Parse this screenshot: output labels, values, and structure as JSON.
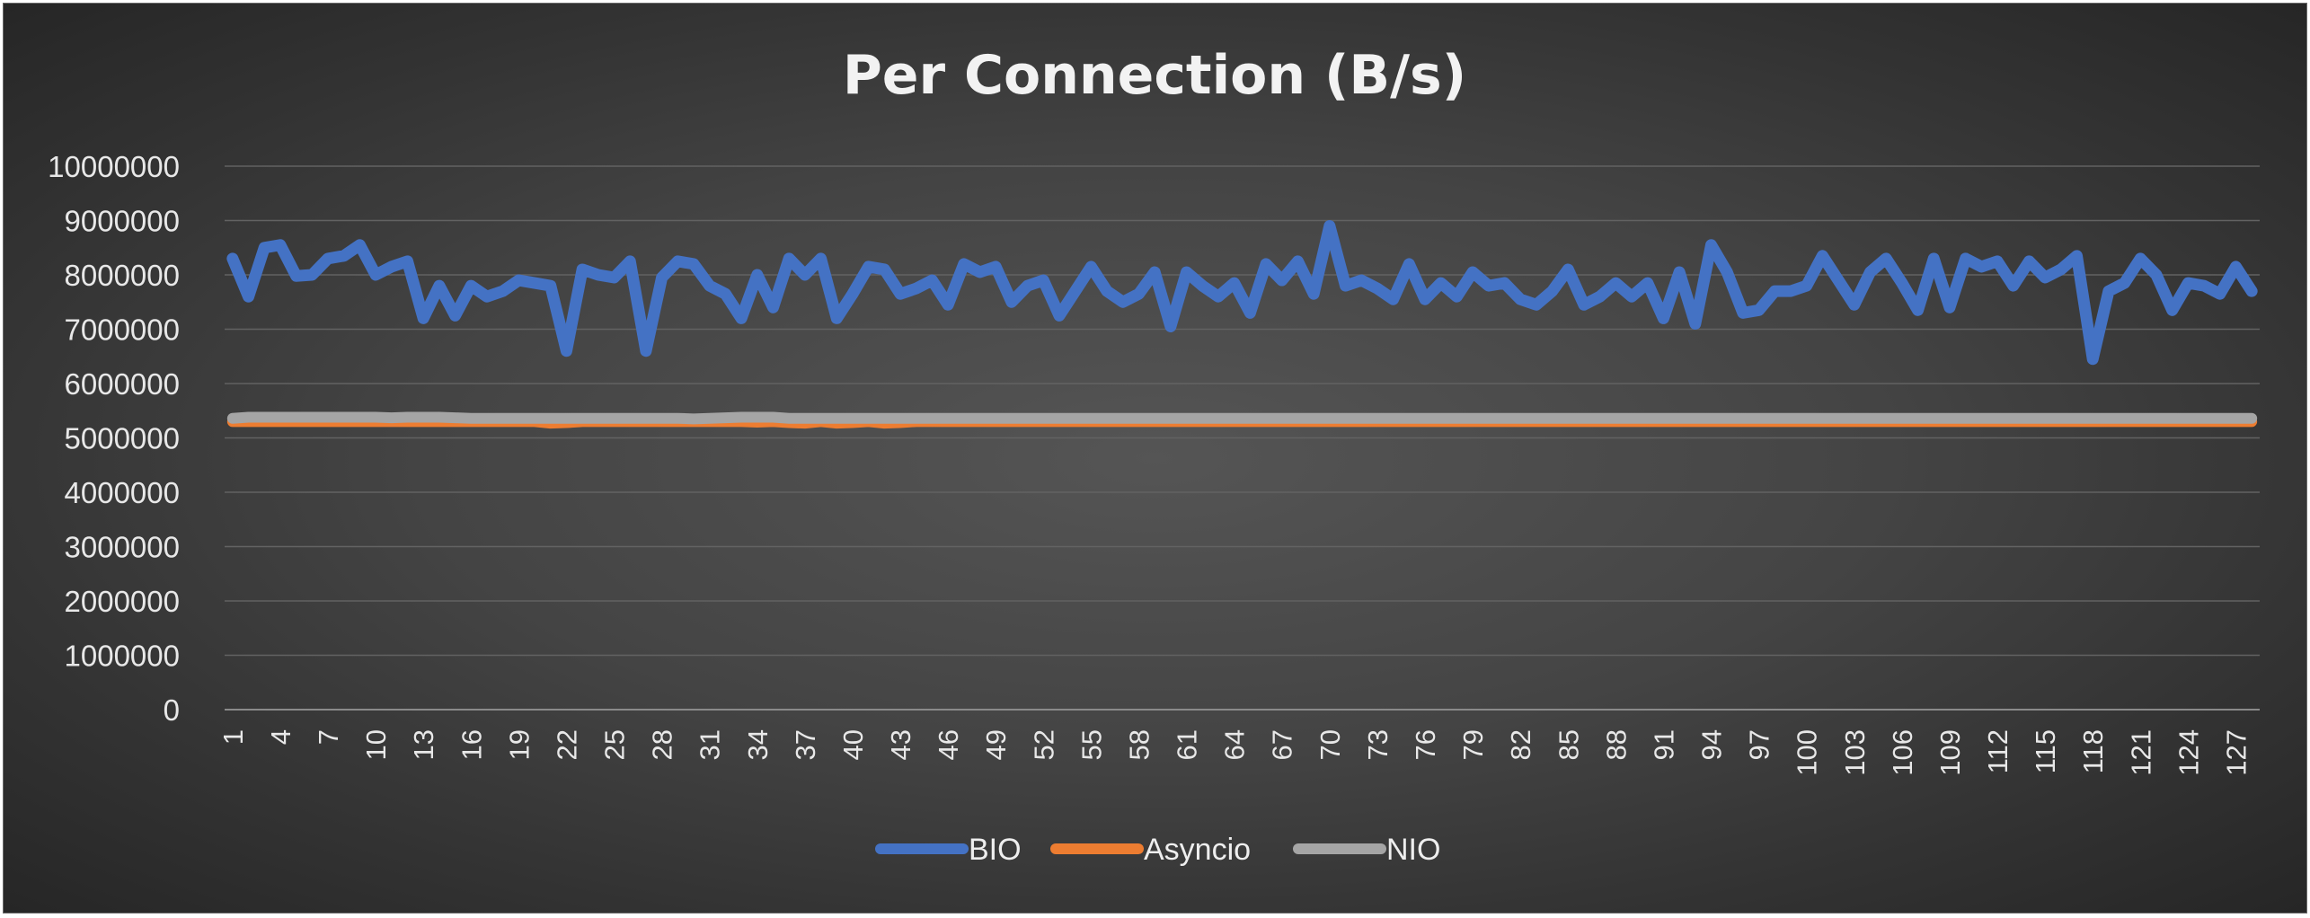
{
  "chart_data": {
    "type": "line",
    "title": "Per Connection (B/s)",
    "xlabel": "",
    "ylabel": "",
    "ylim": [
      0,
      10000000
    ],
    "yticks": [
      0,
      1000000,
      2000000,
      3000000,
      4000000,
      5000000,
      6000000,
      7000000,
      8000000,
      9000000,
      10000000
    ],
    "x": [
      1,
      2,
      3,
      4,
      5,
      6,
      7,
      8,
      9,
      10,
      11,
      12,
      13,
      14,
      15,
      16,
      17,
      18,
      19,
      20,
      21,
      22,
      23,
      24,
      25,
      26,
      27,
      28,
      29,
      30,
      31,
      32,
      33,
      34,
      35,
      36,
      37,
      38,
      39,
      40,
      41,
      42,
      43,
      44,
      45,
      46,
      47,
      48,
      49,
      50,
      51,
      52,
      53,
      54,
      55,
      56,
      57,
      58,
      59,
      60,
      61,
      62,
      63,
      64,
      65,
      66,
      67,
      68,
      69,
      70,
      71,
      72,
      73,
      74,
      75,
      76,
      77,
      78,
      79,
      80,
      81,
      82,
      83,
      84,
      85,
      86,
      87,
      88,
      89,
      90,
      91,
      92,
      93,
      94,
      95,
      96,
      97,
      98,
      99,
      100,
      101,
      102,
      103,
      104,
      105,
      106,
      107,
      108,
      109,
      110,
      111,
      112,
      113,
      114,
      115,
      116,
      117,
      118,
      119,
      120,
      121,
      122,
      123,
      124,
      125,
      126,
      127,
      128
    ],
    "xticks_shown": [
      1,
      4,
      7,
      10,
      13,
      16,
      19,
      22,
      25,
      28,
      31,
      34,
      37,
      40,
      43,
      46,
      49,
      52,
      55,
      58,
      61,
      64,
      67,
      70,
      73,
      76,
      79,
      82,
      85,
      88,
      91,
      94,
      97,
      100,
      103,
      106,
      109,
      112,
      115,
      118,
      121,
      124,
      127
    ],
    "grid": true,
    "legend_position": "bottom",
    "series": [
      {
        "name": "BIO",
        "color": "#4472C4",
        "values": [
          8300000,
          7600000,
          8500000,
          8550000,
          7980000,
          8000000,
          8300000,
          8350000,
          8550000,
          8000000,
          8150000,
          8250000,
          7200000,
          7800000,
          7250000,
          7800000,
          7600000,
          7700000,
          7900000,
          7850000,
          7800000,
          6600000,
          8100000,
          8000000,
          7950000,
          8250000,
          6600000,
          7950000,
          8250000,
          8200000,
          7800000,
          7650000,
          7200000,
          8000000,
          7400000,
          8300000,
          8000000,
          8300000,
          7200000,
          7650000,
          8150000,
          8100000,
          7650000,
          7750000,
          7900000,
          7450000,
          8200000,
          8050000,
          8150000,
          7500000,
          7800000,
          7900000,
          7250000,
          7700000,
          8150000,
          7700000,
          7500000,
          7650000,
          8050000,
          7050000,
          8050000,
          7800000,
          7600000,
          7850000,
          7300000,
          8200000,
          7900000,
          8250000,
          7650000,
          8900000,
          7800000,
          7900000,
          7750000,
          7550000,
          8200000,
          7550000,
          7850000,
          7600000,
          8050000,
          7800000,
          7850000,
          7550000,
          7450000,
          7700000,
          8100000,
          7450000,
          7600000,
          7850000,
          7600000,
          7850000,
          7200000,
          8050000,
          7100000,
          8550000,
          8050000,
          7300000,
          7350000,
          7700000,
          7700000,
          7800000,
          8350000,
          7900000,
          7450000,
          8050000,
          8300000,
          7850000,
          7350000,
          8300000,
          7400000,
          8300000,
          8150000,
          8250000,
          7800000,
          8250000,
          7950000,
          8100000,
          8350000,
          6450000,
          7700000,
          7850000,
          8300000,
          8000000,
          7350000,
          7850000,
          7800000,
          7650000,
          8150000,
          7700000
        ]
      },
      {
        "name": "Asyncio",
        "color": "#ED7D31",
        "values": [
          5300000,
          5300000,
          5300000,
          5300000,
          5300000,
          5300000,
          5300000,
          5300000,
          5300000,
          5300000,
          5300000,
          5300000,
          5300000,
          5300000,
          5300000,
          5300000,
          5300000,
          5300000,
          5300000,
          5300000,
          5270000,
          5280000,
          5300000,
          5300000,
          5300000,
          5300000,
          5300000,
          5300000,
          5300000,
          5300000,
          5300000,
          5300000,
          5300000,
          5290000,
          5300000,
          5280000,
          5270000,
          5300000,
          5270000,
          5280000,
          5300000,
          5270000,
          5280000,
          5300000,
          5300000,
          5300000,
          5300000,
          5300000,
          5300000,
          5300000,
          5300000,
          5300000,
          5300000,
          5300000,
          5300000,
          5300000,
          5300000,
          5300000,
          5300000,
          5300000,
          5300000,
          5300000,
          5300000,
          5300000,
          5300000,
          5300000,
          5300000,
          5300000,
          5300000,
          5300000,
          5300000,
          5300000,
          5300000,
          5300000,
          5300000,
          5300000,
          5300000,
          5300000,
          5300000,
          5300000,
          5300000,
          5300000,
          5300000,
          5300000,
          5300000,
          5300000,
          5300000,
          5300000,
          5300000,
          5300000,
          5300000,
          5300000,
          5300000,
          5300000,
          5300000,
          5300000,
          5300000,
          5300000,
          5300000,
          5300000,
          5300000,
          5300000,
          5300000,
          5300000,
          5300000,
          5300000,
          5300000,
          5300000,
          5300000,
          5300000,
          5300000,
          5300000,
          5300000,
          5300000,
          5300000,
          5300000,
          5300000,
          5300000,
          5300000,
          5300000,
          5300000,
          5300000,
          5300000,
          5300000,
          5300000,
          5300000,
          5300000,
          5300000
        ]
      },
      {
        "name": "NIO",
        "color": "#A5A5A5",
        "values": [
          5360000,
          5380000,
          5380000,
          5380000,
          5380000,
          5380000,
          5380000,
          5380000,
          5380000,
          5380000,
          5370000,
          5380000,
          5380000,
          5380000,
          5370000,
          5360000,
          5360000,
          5360000,
          5360000,
          5360000,
          5360000,
          5360000,
          5360000,
          5360000,
          5360000,
          5360000,
          5360000,
          5360000,
          5360000,
          5350000,
          5360000,
          5370000,
          5380000,
          5380000,
          5380000,
          5360000,
          5360000,
          5360000,
          5360000,
          5360000,
          5360000,
          5360000,
          5360000,
          5360000,
          5360000,
          5360000,
          5360000,
          5360000,
          5360000,
          5360000,
          5360000,
          5360000,
          5360000,
          5360000,
          5360000,
          5360000,
          5360000,
          5360000,
          5360000,
          5360000,
          5360000,
          5360000,
          5360000,
          5360000,
          5360000,
          5360000,
          5360000,
          5360000,
          5360000,
          5360000,
          5360000,
          5360000,
          5360000,
          5360000,
          5360000,
          5360000,
          5360000,
          5360000,
          5360000,
          5360000,
          5360000,
          5360000,
          5360000,
          5360000,
          5360000,
          5360000,
          5360000,
          5360000,
          5360000,
          5360000,
          5360000,
          5360000,
          5360000,
          5360000,
          5360000,
          5360000,
          5360000,
          5360000,
          5360000,
          5360000,
          5360000,
          5360000,
          5360000,
          5360000,
          5360000,
          5360000,
          5360000,
          5360000,
          5360000,
          5360000,
          5360000,
          5360000,
          5360000,
          5360000,
          5360000,
          5360000,
          5360000,
          5360000,
          5360000,
          5360000,
          5360000,
          5360000,
          5360000,
          5360000,
          5360000,
          5360000,
          5360000,
          5360000
        ]
      }
    ]
  }
}
